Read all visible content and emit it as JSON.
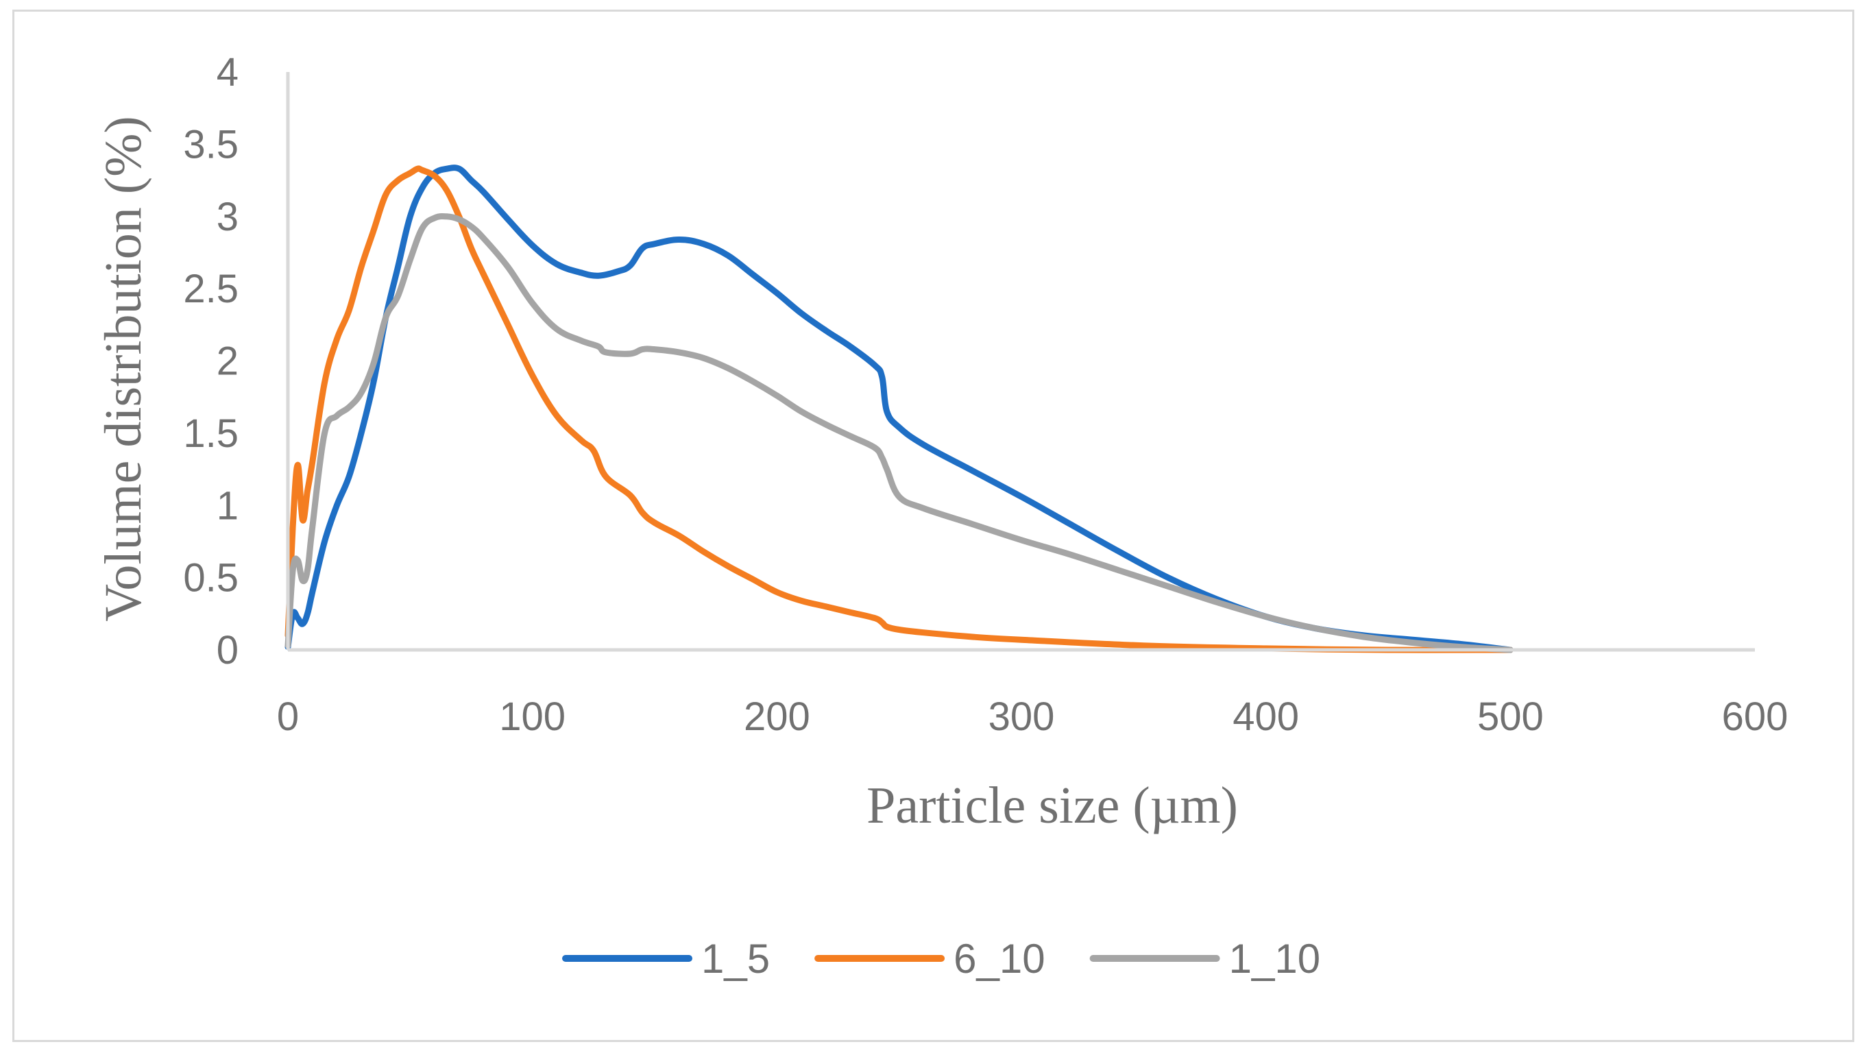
{
  "chart_data": {
    "type": "line",
    "title": "",
    "xlabel": "Particle size (µm)",
    "ylabel": "Volume distribution (%)",
    "xlim": [
      0,
      600
    ],
    "ylim": [
      0,
      4
    ],
    "xticks": [
      0,
      100,
      200,
      300,
      400,
      500,
      600
    ],
    "yticks": [
      0,
      0.5,
      1,
      1.5,
      2,
      2.5,
      3,
      3.5,
      4
    ],
    "grid": false,
    "legend_position": "bottom",
    "series": [
      {
        "name": "1_5",
        "color": "#1f6fc5",
        "x": [
          0,
          2,
          4,
          6,
          8,
          10,
          15,
          20,
          25,
          30,
          35,
          40,
          45,
          50,
          55,
          60,
          65,
          70,
          75,
          80,
          90,
          100,
          110,
          120,
          127,
          135,
          140,
          145,
          150,
          160,
          170,
          180,
          190,
          200,
          210,
          220,
          230,
          240,
          243,
          245,
          250,
          260,
          280,
          300,
          320,
          340,
          360,
          380,
          400,
          420,
          440,
          460,
          480,
          500
        ],
        "y": [
          0.02,
          0.25,
          0.22,
          0.18,
          0.25,
          0.4,
          0.75,
          1.0,
          1.2,
          1.5,
          1.85,
          2.3,
          2.65,
          3.0,
          3.2,
          3.3,
          3.33,
          3.33,
          3.25,
          3.17,
          2.98,
          2.8,
          2.67,
          2.61,
          2.59,
          2.62,
          2.66,
          2.78,
          2.81,
          2.84,
          2.81,
          2.73,
          2.6,
          2.47,
          2.33,
          2.21,
          2.1,
          1.97,
          1.89,
          1.65,
          1.54,
          1.42,
          1.24,
          1.06,
          0.87,
          0.68,
          0.5,
          0.35,
          0.23,
          0.15,
          0.1,
          0.07,
          0.04,
          0.0
        ]
      },
      {
        "name": "6_10",
        "color": "#f47d20",
        "x": [
          0,
          2,
          4,
          6,
          8,
          10,
          15,
          20,
          25,
          30,
          35,
          40,
          45,
          50,
          53,
          55,
          60,
          65,
          70,
          75,
          80,
          90,
          100,
          110,
          120,
          125,
          130,
          140,
          145,
          150,
          160,
          170,
          180,
          190,
          200,
          210,
          220,
          230,
          240,
          243,
          245,
          250,
          260,
          280,
          300,
          350,
          400,
          450,
          500
        ],
        "y": [
          0.1,
          0.85,
          1.28,
          0.9,
          1.1,
          1.3,
          1.85,
          2.15,
          2.35,
          2.65,
          2.9,
          3.15,
          3.25,
          3.3,
          3.33,
          3.32,
          3.28,
          3.18,
          3.0,
          2.78,
          2.6,
          2.25,
          1.9,
          1.62,
          1.45,
          1.38,
          1.2,
          1.07,
          0.95,
          0.88,
          0.79,
          0.68,
          0.58,
          0.49,
          0.4,
          0.34,
          0.3,
          0.26,
          0.22,
          0.19,
          0.16,
          0.14,
          0.12,
          0.09,
          0.07,
          0.03,
          0.01,
          0.0,
          0.0
        ]
      },
      {
        "name": "1_10",
        "color": "#a5a5a5",
        "x": [
          0,
          2,
          4,
          6,
          8,
          10,
          15,
          20,
          25,
          30,
          35,
          40,
          45,
          50,
          55,
          60,
          65,
          70,
          75,
          80,
          90,
          100,
          110,
          120,
          127,
          130,
          140,
          145,
          150,
          160,
          170,
          180,
          190,
          200,
          210,
          220,
          230,
          240,
          243,
          245,
          250,
          260,
          280,
          300,
          320,
          340,
          360,
          380,
          400,
          420,
          440,
          460,
          480,
          500
        ],
        "y": [
          0.03,
          0.55,
          0.62,
          0.48,
          0.55,
          0.85,
          1.5,
          1.62,
          1.68,
          1.78,
          1.98,
          2.3,
          2.45,
          2.7,
          2.92,
          2.99,
          3.0,
          2.98,
          2.93,
          2.85,
          2.65,
          2.4,
          2.22,
          2.14,
          2.1,
          2.06,
          2.05,
          2.08,
          2.08,
          2.06,
          2.02,
          1.95,
          1.86,
          1.76,
          1.65,
          1.56,
          1.48,
          1.4,
          1.33,
          1.25,
          1.06,
          0.98,
          0.87,
          0.76,
          0.66,
          0.55,
          0.44,
          0.33,
          0.23,
          0.15,
          0.09,
          0.05,
          0.02,
          0.0
        ]
      }
    ]
  }
}
